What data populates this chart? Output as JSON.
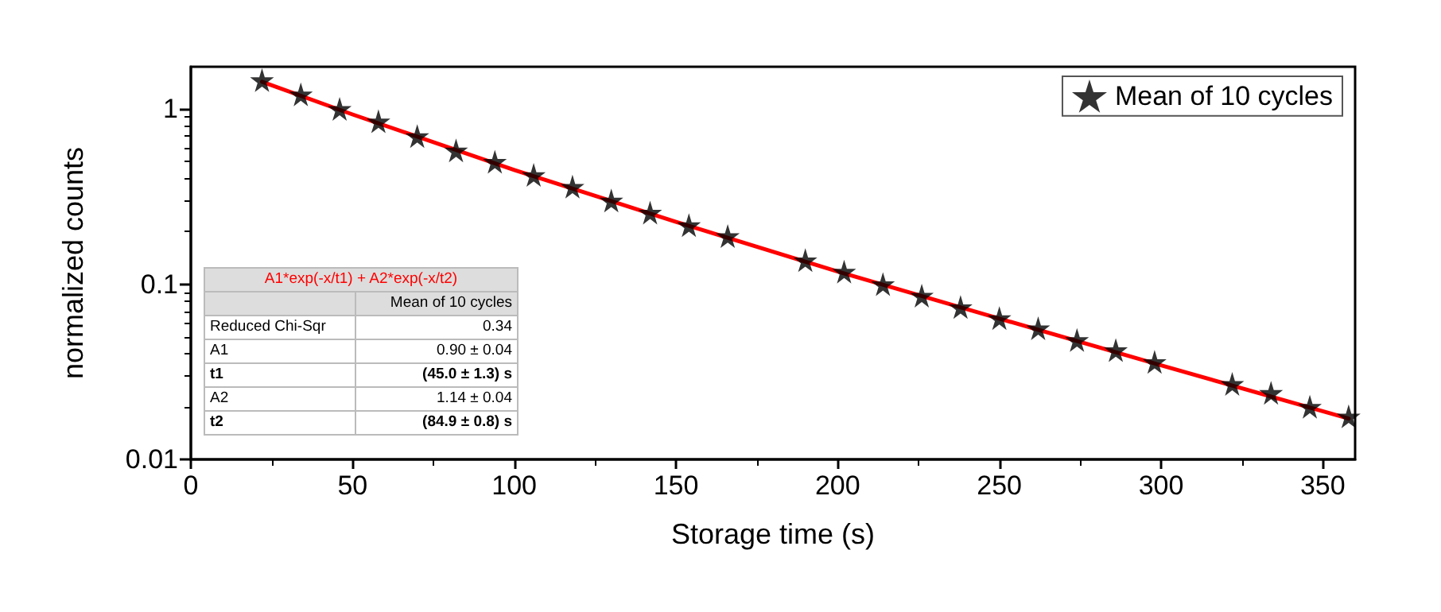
{
  "chart_data": {
    "type": "scatter",
    "xlabel": "Storage time (s)",
    "ylabel": "normalized counts",
    "log": "y",
    "xlim": [
      0,
      360
    ],
    "xticks": [
      0,
      50,
      100,
      150,
      200,
      250,
      300,
      350
    ],
    "ylim": [
      0.01,
      1.74
    ],
    "yticks": [
      0.01,
      0.1,
      1
    ],
    "grid": false,
    "legend": "top right",
    "marker": "star",
    "x": [
      22,
      34,
      46,
      58,
      70,
      82,
      94,
      106,
      118,
      130,
      142,
      154,
      166,
      190,
      202,
      214,
      226,
      238,
      250,
      262,
      274,
      286,
      298,
      322,
      334,
      346,
      358
    ],
    "series": [
      {
        "name": "Mean of 10 cycles",
        "color": "#000000",
        "values": [
          1.46,
          1.21,
          1.0,
          0.85,
          0.7,
          0.58,
          0.5,
          0.42,
          0.36,
          0.3,
          0.256,
          0.217,
          0.188,
          0.137,
          0.118,
          0.1,
          0.086,
          0.074,
          0.064,
          0.056,
          0.048,
          0.042,
          0.036,
          0.027,
          0.024,
          0.02,
          0.0176
        ]
      },
      {
        "type": "line",
        "color": "#ff0000",
        "marker": "none",
        "line_style": "solid",
        "x": [
          22,
          50,
          100,
          150,
          200,
          250,
          300,
          358
        ],
        "values": [
          1.43,
          0.93,
          0.448,
          0.227,
          0.118,
          0.0636,
          0.0344,
          0.0171
        ]
      }
    ],
    "annotations": [
      "A1*exp(-x/t1) + A2*exp(-x/t2)",
      "Mean of 10 cycles",
      "Reduced Chi-Sqr",
      "0.34",
      "A1",
      "0.90 ± 0.04",
      "t1",
      "(45.0 ± 1.3) s",
      "A2",
      "1.14 ± 0.04",
      "t2",
      "(84.9 ± 0.8) s"
    ]
  }
}
